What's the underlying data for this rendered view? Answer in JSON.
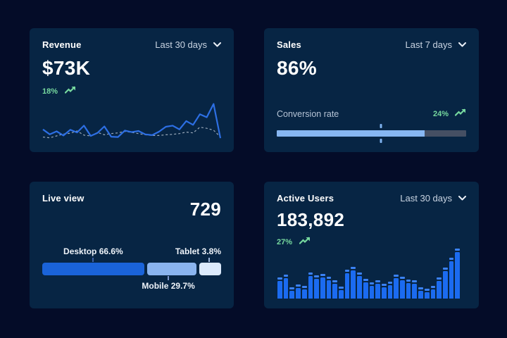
{
  "colors": {
    "page_bg": "#040c28",
    "card_bg": "#072544",
    "green": "#77d99f",
    "line_blue": "#2d6fe4",
    "dash_gray": "#9aa9ba",
    "bar_blue": "#1b6bf0",
    "bar_cap_blue": "#3b82f6",
    "progress_fill": "#87b7f2",
    "progress_track": "#454f63",
    "desktop_blue": "#1a63d9",
    "mobile_blue": "#8ab4ef",
    "tablet_blue": "#dceafc"
  },
  "cards": {
    "revenue": {
      "title": "Revenue",
      "range": "Last 30 days",
      "value": "$73K",
      "delta": "18%"
    },
    "sales": {
      "title": "Sales",
      "range": "Last 7 days",
      "value": "86%",
      "metric_label": "Conversion rate",
      "delta": "24%"
    },
    "live_view": {
      "title": "Live view",
      "value": "729",
      "labels": {
        "desktop": "Desktop 66.6%",
        "mobile": "Mobile 29.7%",
        "tablet": "Tablet 3.8%"
      }
    },
    "active_users": {
      "title": "Active Users",
      "range": "Last 30 days",
      "value": "183,892",
      "delta": "27%"
    }
  },
  "chart_data": [
    {
      "id": "revenue-trend",
      "type": "line",
      "title": "Revenue",
      "range": "Last 30 days",
      "headline_value": "$73K",
      "delta_pct": 18,
      "grid": false,
      "ylim": [
        0,
        100
      ],
      "series": [
        {
          "name": "current",
          "style": "solid",
          "color": "#2d6fe4",
          "values": [
            30,
            17,
            25,
            14,
            29,
            22,
            40,
            13,
            21,
            38,
            11,
            10,
            27,
            23,
            26,
            17,
            15,
            24,
            37,
            40,
            30,
            52,
            42,
            70,
            62,
            97,
            7
          ]
        },
        {
          "name": "previous",
          "style": "dashed",
          "color": "#9aa9ba",
          "values": [
            10,
            8,
            13,
            18,
            20,
            26,
            15,
            13,
            22,
            16,
            19,
            21,
            25,
            22,
            19,
            16,
            14,
            14,
            16,
            17,
            19,
            23,
            21,
            36,
            33,
            28,
            10
          ]
        }
      ]
    },
    {
      "id": "conversion-progress",
      "type": "progress",
      "label": "Conversion rate",
      "headline_value": "86%",
      "delta_pct": 24,
      "fill_pct": 78,
      "marker_pct": 55,
      "fill_color": "#87b7f2",
      "track_color": "#454f63"
    },
    {
      "id": "device-split",
      "type": "stacked-bar",
      "title": "Live view",
      "headline_value": 729,
      "segments": [
        {
          "label": "Desktop",
          "pct": 66.6,
          "display_pct": 57.0,
          "color": "#1a63d9"
        },
        {
          "label": "Mobile",
          "pct": 29.7,
          "display_pct": 27.5,
          "color": "#8ab4ef"
        },
        {
          "label": "Tablet",
          "pct": 3.8,
          "display_pct": 12.3,
          "color": "#dceafc"
        }
      ]
    },
    {
      "id": "active-users-bars",
      "type": "bar",
      "title": "Active Users",
      "range": "Last 30 days",
      "headline_value": "183,892",
      "delta_pct": 27,
      "bar_color": "#1b6bf0",
      "cap_color": "#3b82f6",
      "ylim": [
        0,
        100
      ],
      "values": [
        42,
        48,
        22,
        28,
        25,
        52,
        46,
        50,
        44,
        36,
        24,
        58,
        64,
        52,
        40,
        33,
        36,
        30,
        34,
        48,
        44,
        38,
        36,
        22,
        20,
        26,
        42,
        62,
        82,
        100
      ]
    }
  ]
}
